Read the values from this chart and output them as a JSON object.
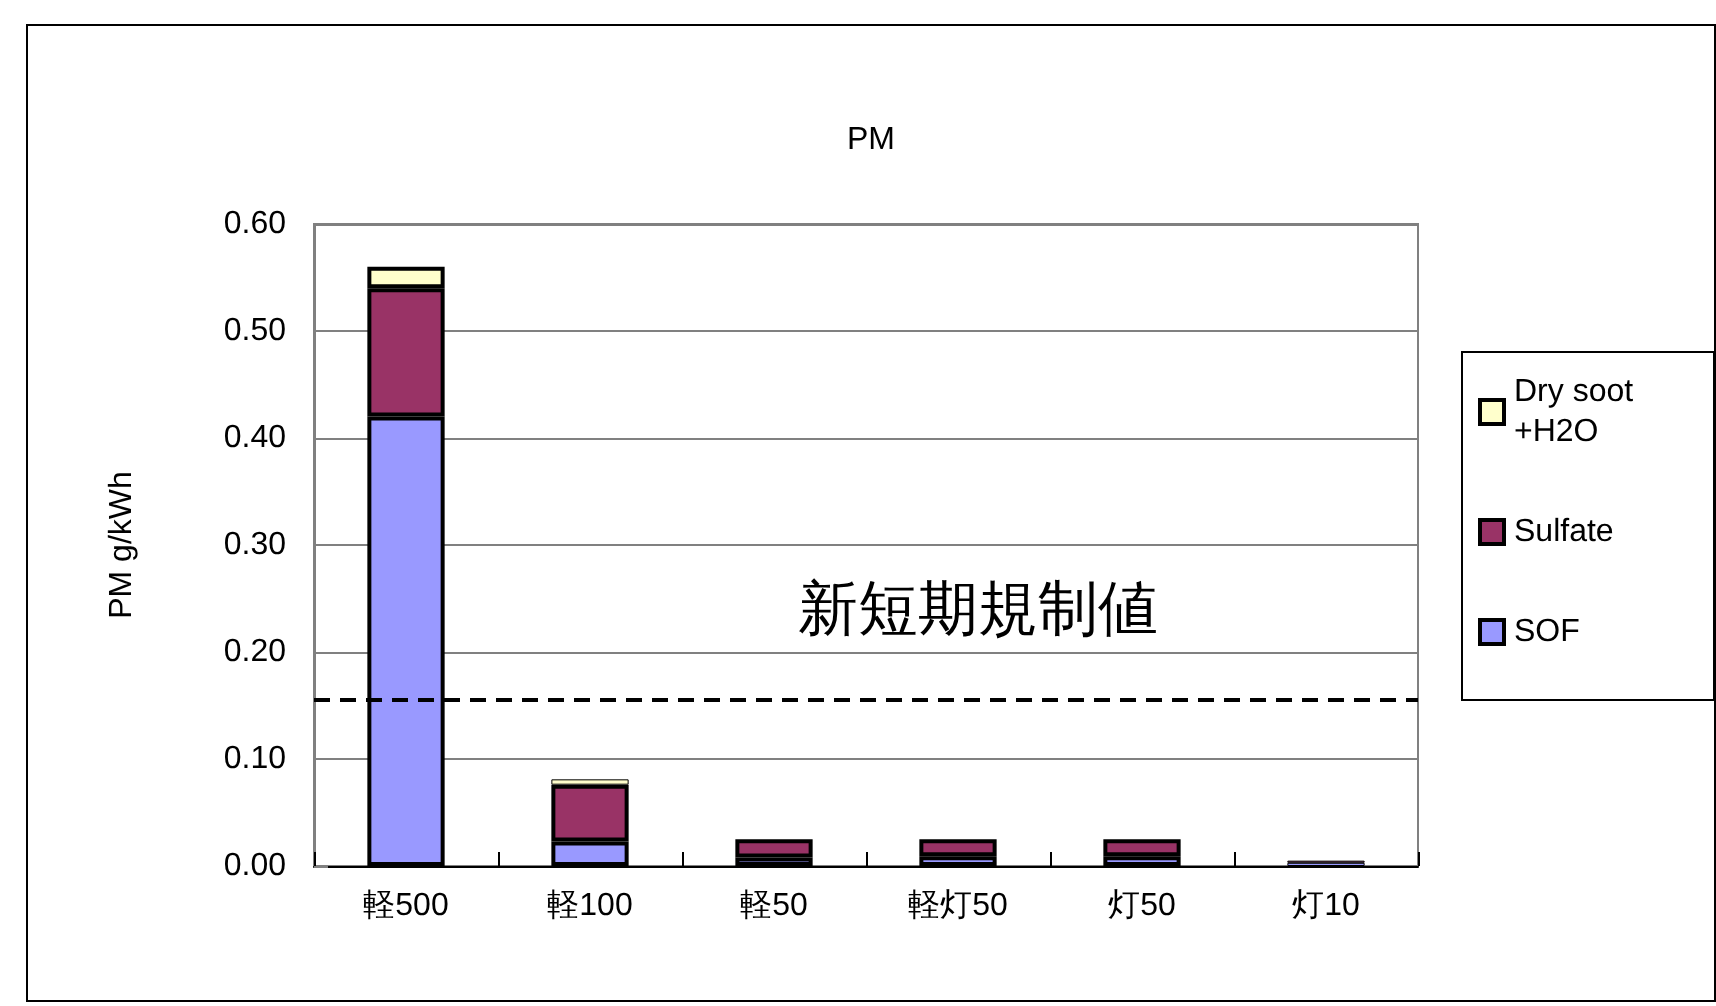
{
  "chart_data": {
    "type": "bar",
    "title": "PM",
    "ylabel": "PM g/kWh",
    "categories": [
      "軽500",
      "軽100",
      "軽50",
      "軽灯50",
      "灯50",
      "灯10"
    ],
    "stacked": true,
    "series": [
      {
        "name": "SOF",
        "color": "#9999ff",
        "values": [
          0.42,
          0.023,
          0.008,
          0.009,
          0.009,
          0.003
        ]
      },
      {
        "name": "Sulfate",
        "color": "#993366",
        "values": [
          0.12,
          0.053,
          0.017,
          0.016,
          0.016,
          0.002
        ]
      },
      {
        "name": "Dry soot +H2O",
        "color": "#ffffcc",
        "values": [
          0.02,
          0.005,
          null,
          null,
          null,
          null
        ]
      }
    ],
    "ylim": [
      0,
      0.6
    ],
    "yticks": [
      {
        "value": 0,
        "label": "0.00"
      },
      {
        "value": 0.1,
        "label": "0.10"
      },
      {
        "value": 0.2,
        "label": "0.20"
      },
      {
        "value": 0.3,
        "label": "0.30"
      },
      {
        "value": 0.4,
        "label": "0.40"
      },
      {
        "value": 0.5,
        "label": "0.50"
      },
      {
        "value": 0.6,
        "label": "0.60"
      }
    ],
    "grid": "y",
    "legend": "right",
    "ref_lines": [
      {
        "axis": "y",
        "value": 0.155,
        "label": "新短期規制値",
        "color": "#000000",
        "line_style": "dashed"
      }
    ]
  }
}
